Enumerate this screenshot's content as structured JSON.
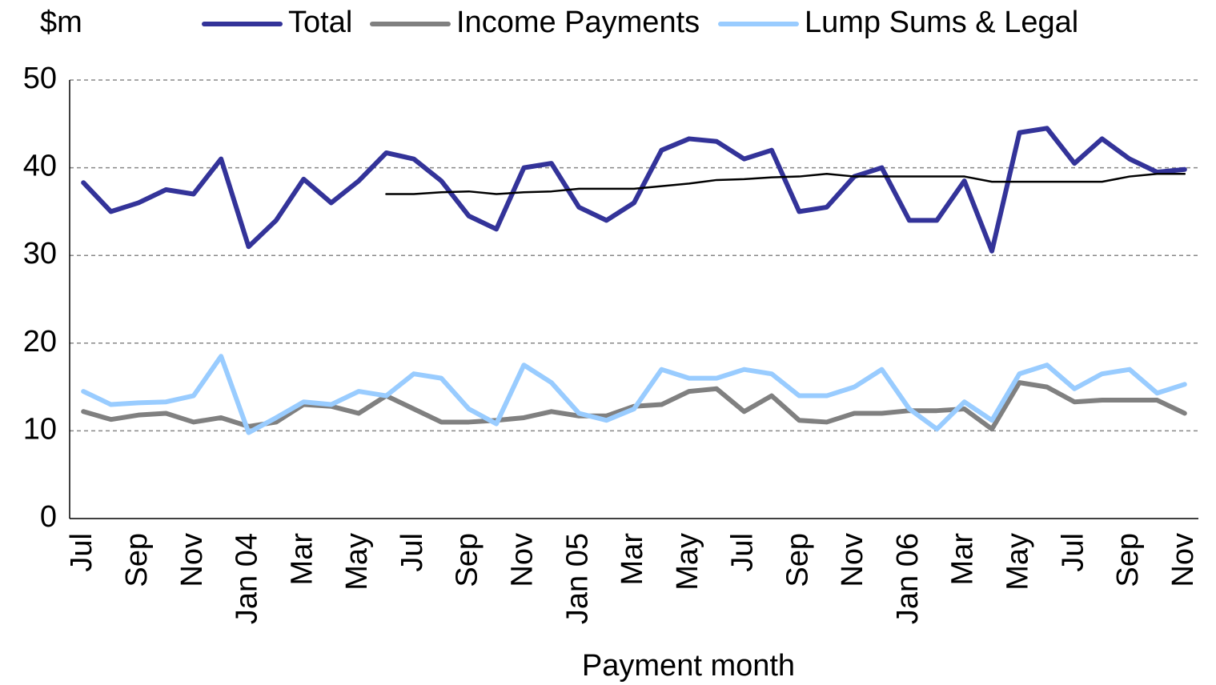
{
  "chart_data": {
    "type": "line",
    "y_label": "$m",
    "x_label": "Payment month",
    "categories": [
      "Jul",
      null,
      "Sep",
      null,
      "Nov",
      null,
      "Jan 04",
      null,
      "Mar",
      null,
      "May",
      null,
      "Jul",
      null,
      "Sep",
      null,
      "Nov",
      null,
      "Jan 05",
      null,
      "Mar",
      null,
      "May",
      null,
      "Jul",
      null,
      "Sep",
      null,
      "Nov",
      null,
      "Jan 06",
      null,
      "Mar",
      null,
      "May",
      null,
      "Jul",
      null,
      "Sep",
      null,
      "Nov"
    ],
    "series": [
      {
        "name": "Total",
        "color": "#333399",
        "values": [
          38.3,
          35,
          36,
          37.5,
          37,
          41,
          31,
          34,
          38.7,
          36,
          38.5,
          41.7,
          41,
          38.5,
          34.5,
          33,
          40,
          40.5,
          35.5,
          34,
          36,
          42,
          43.3,
          43,
          41,
          42,
          35,
          35.5,
          39,
          40,
          34,
          34,
          38.5,
          30.5,
          44,
          44.5,
          40.5,
          43.3,
          41,
          39.5,
          39.8
        ]
      },
      {
        "name": "Income Payments",
        "color": "#808080",
        "values": [
          12.2,
          11.3,
          11.8,
          12,
          11,
          11.5,
          10.5,
          11,
          13,
          12.8,
          12,
          14,
          12.5,
          11,
          11,
          11.2,
          11.5,
          12.2,
          11.7,
          11.7,
          12.8,
          13,
          14.5,
          14.8,
          12.2,
          14,
          11.2,
          11,
          12,
          12,
          12.3,
          12.3,
          12.5,
          10.2,
          15.5,
          15,
          13.3,
          13.5,
          13.5,
          13.5,
          12
        ]
      },
      {
        "name": "Lump Sums & Legal",
        "color": "#99ccff",
        "values": [
          14.5,
          13,
          13.2,
          13.3,
          14,
          18.5,
          9.8,
          11.5,
          13.3,
          13,
          14.5,
          14,
          16.5,
          16,
          12.5,
          10.8,
          17.5,
          15.5,
          12,
          11.2,
          12.5,
          17,
          16,
          16,
          17,
          16.5,
          14,
          14,
          15,
          17,
          12.5,
          10.2,
          13.3,
          11.2,
          16.5,
          17.5,
          14.8,
          16.5,
          17,
          14.3,
          15.3
        ]
      },
      {
        "color": "#000000",
        "values": [
          null,
          null,
          null,
          null,
          null,
          null,
          null,
          null,
          null,
          null,
          null,
          37,
          37,
          37.2,
          37.3,
          37,
          37.2,
          37.3,
          37.6,
          37.6,
          37.6,
          37.9,
          38.2,
          38.6,
          38.7,
          38.9,
          39,
          39.3,
          39,
          39,
          39,
          39,
          39,
          38.4,
          38.4,
          38.4,
          38.4,
          38.4,
          39,
          39.3,
          39.3
        ]
      }
    ],
    "ylim": [
      0,
      50
    ],
    "yticks": [
      0,
      10,
      20,
      30,
      40,
      50
    ],
    "grid": true,
    "legend": "top"
  }
}
